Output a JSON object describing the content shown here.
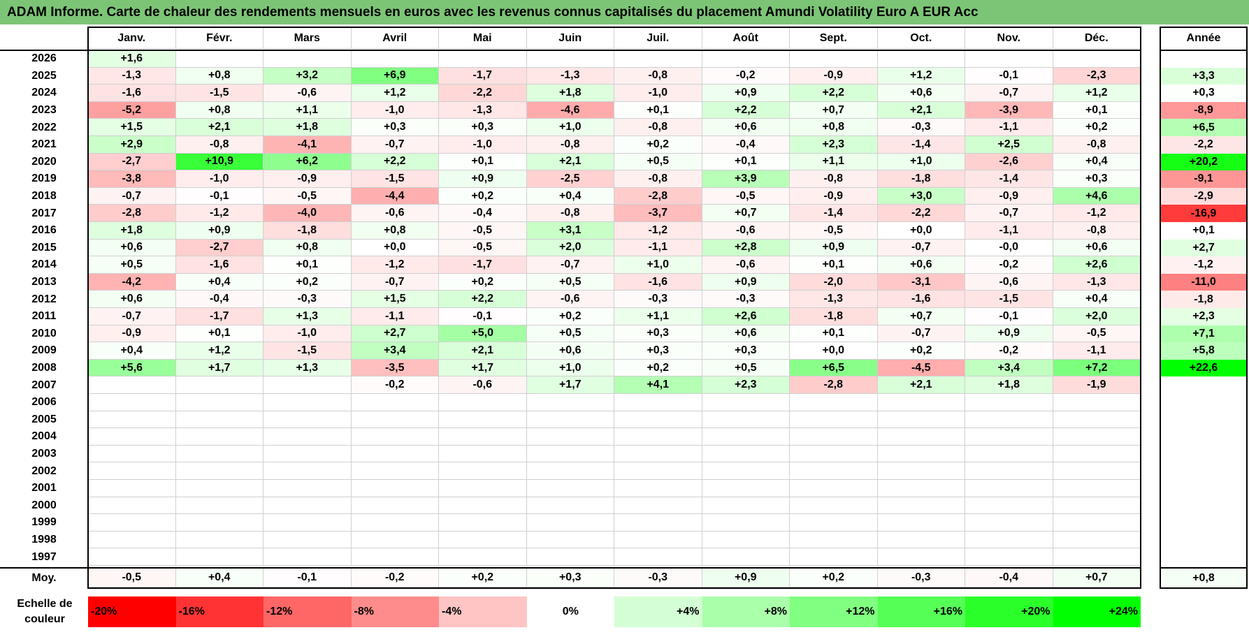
{
  "chart_data": {
    "type": "heatmap",
    "title": "ADAM Informe. Carte de chaleur des rendements mensuels en euros avec les revenus connus capitalisés du placement Amundi Volatility Euro A EUR Acc",
    "months": [
      "Janv.",
      "Févr.",
      "Mars",
      "Avril",
      "Mai",
      "Juin",
      "Juil.",
      "Août",
      "Sept.",
      "Oct.",
      "Nov.",
      "Déc."
    ],
    "year_header": "Année",
    "rows": [
      {
        "year": "2026",
        "values": [
          "+1,6",
          "",
          "",
          "",
          "",
          "",
          "",
          "",
          "",
          "",
          "",
          ""
        ],
        "annual": ""
      },
      {
        "year": "2025",
        "values": [
          "-1,3",
          "+0,8",
          "+3,2",
          "+6,9",
          "-1,7",
          "-1,3",
          "-0,8",
          "-0,2",
          "-0,9",
          "+1,2",
          "-0,1",
          "-2,3"
        ],
        "annual": "+3,3"
      },
      {
        "year": "2024",
        "values": [
          "-1,6",
          "-1,5",
          "-0,6",
          "+1,2",
          "-2,2",
          "+1,8",
          "-1,0",
          "+0,9",
          "+2,2",
          "+0,6",
          "-0,7",
          "+1,2"
        ],
        "annual": "+0,3"
      },
      {
        "year": "2023",
        "values": [
          "-5,2",
          "+0,8",
          "+1,1",
          "-1,0",
          "-1,3",
          "-4,6",
          "+0,1",
          "+2,2",
          "+0,7",
          "+2,1",
          "-3,9",
          "+0,1"
        ],
        "annual": "-8,9"
      },
      {
        "year": "2022",
        "values": [
          "+1,5",
          "+2,1",
          "+1,8",
          "+0,3",
          "+0,3",
          "+1,0",
          "-0,8",
          "+0,6",
          "+0,8",
          "-0,3",
          "-1,1",
          "+0,2"
        ],
        "annual": "+6,5"
      },
      {
        "year": "2021",
        "values": [
          "+2,9",
          "-0,8",
          "-4,1",
          "-0,7",
          "-1,0",
          "-0,8",
          "+0,2",
          "-0,4",
          "+2,3",
          "-1,4",
          "+2,5",
          "-0,8"
        ],
        "annual": "-2,2"
      },
      {
        "year": "2020",
        "values": [
          "-2,7",
          "+10,9",
          "+6,2",
          "+2,2",
          "+0,1",
          "+2,1",
          "+0,5",
          "+0,1",
          "+1,1",
          "+1,0",
          "-2,6",
          "+0,4"
        ],
        "annual": "+20,2"
      },
      {
        "year": "2019",
        "values": [
          "-3,8",
          "-1,0",
          "-0,9",
          "-1,5",
          "+0,9",
          "-2,5",
          "-0,8",
          "+3,9",
          "-0,8",
          "-1,8",
          "-1,4",
          "+0,3"
        ],
        "annual": "-9,1"
      },
      {
        "year": "2018",
        "values": [
          "-0,7",
          "-0,1",
          "-0,5",
          "-4,4",
          "+0,2",
          "+0,4",
          "-2,8",
          "-0,5",
          "-0,9",
          "+3,0",
          "-0,9",
          "+4,6"
        ],
        "annual": "-2,9"
      },
      {
        "year": "2017",
        "values": [
          "-2,8",
          "-1,2",
          "-4,0",
          "-0,6",
          "-0,4",
          "-0,8",
          "-3,7",
          "+0,7",
          "-1,4",
          "-2,2",
          "-0,7",
          "-1,2"
        ],
        "annual": "-16,9"
      },
      {
        "year": "2016",
        "values": [
          "+1,8",
          "+0,9",
          "-1,8",
          "+0,8",
          "-0,5",
          "+3,1",
          "-1,2",
          "-0,6",
          "-0,5",
          "+0,0",
          "-1,1",
          "-0,8"
        ],
        "annual": "+0,1"
      },
      {
        "year": "2015",
        "values": [
          "+0,6",
          "-2,7",
          "+0,8",
          "+0,0",
          "-0,5",
          "+2,0",
          "-1,1",
          "+2,8",
          "+0,9",
          "-0,7",
          "-0,0",
          "+0,6"
        ],
        "annual": "+2,7"
      },
      {
        "year": "2014",
        "values": [
          "+0,5",
          "-1,6",
          "+0,1",
          "-1,2",
          "-1,7",
          "-0,7",
          "+1,0",
          "-0,6",
          "+0,1",
          "+0,6",
          "-0,2",
          "+2,6"
        ],
        "annual": "-1,2"
      },
      {
        "year": "2013",
        "values": [
          "-4,2",
          "+0,4",
          "+0,2",
          "-0,7",
          "+0,2",
          "+0,5",
          "-1,6",
          "+0,9",
          "-2,0",
          "-3,1",
          "-0,6",
          "-1,3"
        ],
        "annual": "-11,0"
      },
      {
        "year": "2012",
        "values": [
          "+0,6",
          "-0,4",
          "-0,3",
          "+1,5",
          "+2,2",
          "-0,6",
          "-0,3",
          "-0,3",
          "-1,3",
          "-1,6",
          "-1,5",
          "+0,4"
        ],
        "annual": "-1,8"
      },
      {
        "year": "2011",
        "values": [
          "-0,7",
          "-1,7",
          "+1,3",
          "-1,1",
          "-0,1",
          "+0,2",
          "+1,1",
          "+2,6",
          "-1,8",
          "+0,7",
          "-0,1",
          "+2,0"
        ],
        "annual": "+2,3"
      },
      {
        "year": "2010",
        "values": [
          "-0,9",
          "+0,1",
          "-1,0",
          "+2,7",
          "+5,0",
          "+0,5",
          "+0,3",
          "+0,6",
          "+0,1",
          "-0,7",
          "+0,9",
          "-0,5"
        ],
        "annual": "+7,1"
      },
      {
        "year": "2009",
        "values": [
          "+0,4",
          "+1,2",
          "-1,5",
          "+3,4",
          "+2,1",
          "+0,6",
          "+0,3",
          "+0,3",
          "+0,0",
          "+0,2",
          "-0,2",
          "-1,1"
        ],
        "annual": "+5,8"
      },
      {
        "year": "2008",
        "values": [
          "+5,6",
          "+1,7",
          "+1,3",
          "-3,5",
          "+1,7",
          "+1,0",
          "+0,2",
          "+0,5",
          "+6,5",
          "-4,5",
          "+3,4",
          "+7,2"
        ],
        "annual": "+22,6"
      },
      {
        "year": "2007",
        "values": [
          "",
          "",
          "",
          "-0,2",
          "-0,6",
          "+1,7",
          "+4,1",
          "+2,3",
          "-2,8",
          "+2,1",
          "+1,8",
          "-1,9"
        ],
        "annual": ""
      },
      {
        "year": "2006",
        "values": [
          "",
          "",
          "",
          "",
          "",
          "",
          "",
          "",
          "",
          "",
          "",
          ""
        ],
        "annual": ""
      },
      {
        "year": "2005",
        "values": [
          "",
          "",
          "",
          "",
          "",
          "",
          "",
          "",
          "",
          "",
          "",
          ""
        ],
        "annual": ""
      },
      {
        "year": "2004",
        "values": [
          "",
          "",
          "",
          "",
          "",
          "",
          "",
          "",
          "",
          "",
          "",
          ""
        ],
        "annual": ""
      },
      {
        "year": "2003",
        "values": [
          "",
          "",
          "",
          "",
          "",
          "",
          "",
          "",
          "",
          "",
          "",
          ""
        ],
        "annual": ""
      },
      {
        "year": "2002",
        "values": [
          "",
          "",
          "",
          "",
          "",
          "",
          "",
          "",
          "",
          "",
          "",
          ""
        ],
        "annual": ""
      },
      {
        "year": "2001",
        "values": [
          "",
          "",
          "",
          "",
          "",
          "",
          "",
          "",
          "",
          "",
          "",
          ""
        ],
        "annual": ""
      },
      {
        "year": "2000",
        "values": [
          "",
          "",
          "",
          "",
          "",
          "",
          "",
          "",
          "",
          "",
          "",
          ""
        ],
        "annual": ""
      },
      {
        "year": "1999",
        "values": [
          "",
          "",
          "",
          "",
          "",
          "",
          "",
          "",
          "",
          "",
          "",
          ""
        ],
        "annual": ""
      },
      {
        "year": "1998",
        "values": [
          "",
          "",
          "",
          "",
          "",
          "",
          "",
          "",
          "",
          "",
          "",
          ""
        ],
        "annual": ""
      },
      {
        "year": "1997",
        "values": [
          "",
          "",
          "",
          "",
          "",
          "",
          "",
          "",
          "",
          "",
          "",
          ""
        ],
        "annual": ""
      }
    ],
    "average": {
      "label": "Moy.",
      "values": [
        "-0,5",
        "+0,4",
        "-0,1",
        "-0,2",
        "+0,2",
        "+0,3",
        "-0,3",
        "+0,9",
        "+0,2",
        "-0,3",
        "-0,4",
        "+0,7"
      ],
      "annual": "+0,8"
    },
    "color_scale": {
      "label_line1": "Echelle de",
      "label_line2": "couleur",
      "stops": [
        {
          "label": "-20%",
          "value": -20,
          "color": "#ff0000"
        },
        {
          "label": "-16%",
          "value": -16,
          "color": "#ff3333"
        },
        {
          "label": "-12%",
          "value": -12,
          "color": "#ff6666"
        },
        {
          "label": "-8%",
          "value": -8,
          "color": "#ff8c8c"
        },
        {
          "label": "-4%",
          "value": -4,
          "color": "#ffc4c4"
        },
        {
          "label": "0%",
          "value": 0,
          "color": "#ffffff"
        },
        {
          "label": "+4%",
          "value": 4,
          "color": "#d4ffd4"
        },
        {
          "label": "+8%",
          "value": 8,
          "color": "#aaffaa"
        },
        {
          "label": "+12%",
          "value": 12,
          "color": "#80ff80"
        },
        {
          "label": "+16%",
          "value": 16,
          "color": "#55ff55"
        },
        {
          "label": "+20%",
          "value": 20,
          "color": "#2aff2a"
        },
        {
          "label": "+24%",
          "value": 24,
          "color": "#00ff00"
        }
      ]
    }
  }
}
